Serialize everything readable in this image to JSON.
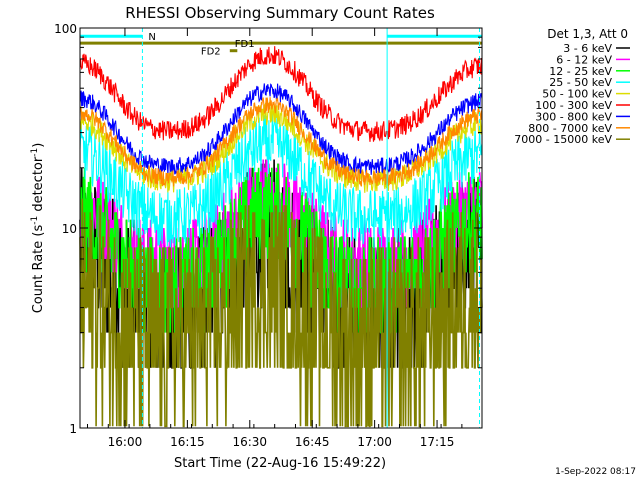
{
  "chart_data": {
    "type": "line",
    "title": "RHESSI Observing Summary Count Rates",
    "xlabel": "Start Time (22-Aug-16 15:49:22)",
    "ylabel_main": "Count Rate (s",
    "ylabel_sup": "-1",
    "ylabel_tail": " detector",
    "ylabel_sup2": "-1",
    "ylabel_close": ")",
    "yscale": "log",
    "ylim": [
      1,
      100
    ],
    "xlim_minutes": [
      15.82,
      17.43
    ],
    "x_ticks": [
      {
        "minutes": 16.0,
        "label": "16:00"
      },
      {
        "minutes": 16.25,
        "label": "16:15"
      },
      {
        "minutes": 16.5,
        "label": "16:30"
      },
      {
        "minutes": 16.75,
        "label": "16:45"
      },
      {
        "minutes": 17.0,
        "label": "17:00"
      },
      {
        "minutes": 17.25,
        "label": "17:15"
      }
    ],
    "y_ticks": [
      {
        "value": 1,
        "label": "1"
      },
      {
        "value": 10,
        "label": "10"
      },
      {
        "value": 100,
        "label": "100"
      }
    ],
    "legend_title": "Det 1,3, Att 0",
    "legend_position": "top-right",
    "series": [
      {
        "name": "3 - 6 keV",
        "color": "#000000",
        "level": 3.8,
        "noise": 0.9,
        "amp": 0.35,
        "quant": true
      },
      {
        "name": "6 - 12 keV",
        "color": "#ff00ff",
        "level": 6.5,
        "noise": 0.5,
        "amp": 0.3,
        "quant": true
      },
      {
        "name": "12 - 25 keV",
        "color": "#00ff00",
        "level": 5.0,
        "noise": 0.6,
        "amp": 0.35,
        "quant": true
      },
      {
        "name": "25 - 50 keV",
        "color": "#00ffff",
        "level": 11.0,
        "noise": 0.35,
        "amp": 0.35,
        "quant": false
      },
      {
        "name": "50 - 100 keV",
        "color": "#dddd00",
        "level": 17.0,
        "noise": 0.14,
        "amp": 0.3,
        "quant": false
      },
      {
        "name": "100 - 300 keV",
        "color": "#ff0000",
        "level": 30.0,
        "noise": 0.12,
        "amp": 0.36,
        "quant": false
      },
      {
        "name": "300 - 800 keV",
        "color": "#0000ff",
        "level": 20.0,
        "noise": 0.1,
        "amp": 0.36,
        "quant": false
      },
      {
        "name": "800 - 7000 keV",
        "color": "#ff8800",
        "level": 17.5,
        "noise": 0.1,
        "amp": 0.34,
        "quant": false
      },
      {
        "name": "7000 - 15000 keV",
        "color": "#808000",
        "level": 2.8,
        "noise": 1.1,
        "amp": 0.2,
        "quant": true
      }
    ],
    "flags": [
      {
        "label": "N",
        "color": "#00ffff",
        "segments": [
          [
            15.82,
            16.07
          ],
          [
            17.05,
            17.43
          ]
        ],
        "value": 91
      },
      {
        "label": "FD1",
        "color": "#808000",
        "segments": [
          [
            15.82,
            17.43
          ]
        ],
        "value": 84
      },
      {
        "label": "FD2",
        "color": "#808000",
        "segments": [
          [
            16.42,
            16.45
          ]
        ],
        "value": 77
      }
    ],
    "vertical_markers_minutes": [
      16.07,
      17.05,
      17.42
    ]
  },
  "footer_timestamp": "1-Sep-2022 08:17"
}
